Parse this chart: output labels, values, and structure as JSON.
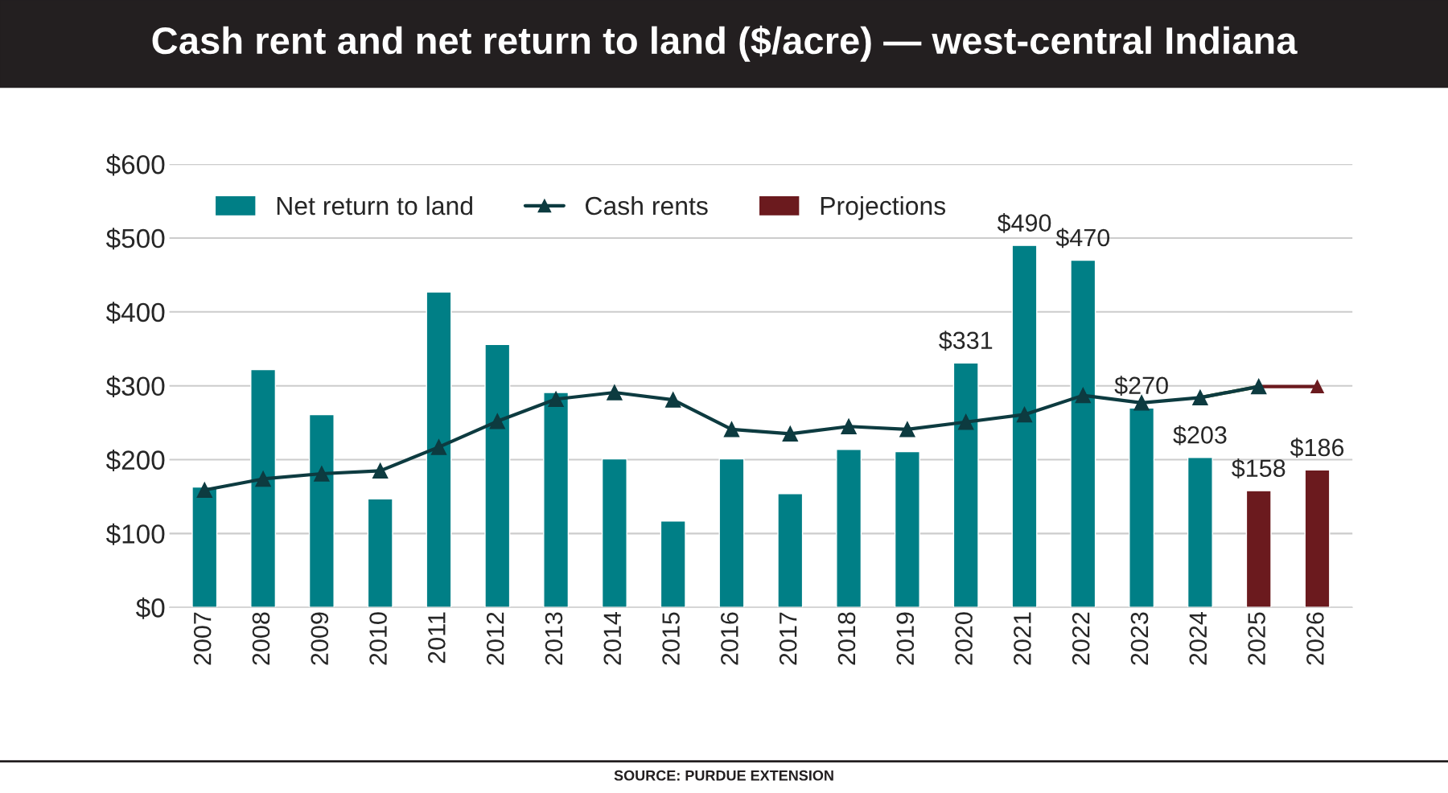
{
  "chart_data": {
    "type": "bar",
    "title": "Cash rent and net return to land ($/acre) — west-central Indiana",
    "categories": [
      "2007",
      "2008",
      "2009",
      "2010",
      "2011",
      "2012",
      "2013",
      "2014",
      "2015",
      "2016",
      "2017",
      "2018",
      "2019",
      "2020",
      "2021",
      "2022",
      "2023",
      "2024",
      "2025",
      "2026"
    ],
    "series": [
      {
        "name": "Net return to land",
        "color": "#007f86",
        "values": [
          163,
          322,
          261,
          147,
          427,
          356,
          291,
          201,
          117,
          201,
          154,
          214,
          211,
          331,
          490,
          470,
          270,
          203,
          null,
          null
        ],
        "value_labels": [
          null,
          null,
          null,
          null,
          null,
          null,
          null,
          null,
          null,
          null,
          null,
          null,
          null,
          "$331",
          "$490",
          "$470",
          "$270",
          "$203",
          null,
          null
        ]
      },
      {
        "type": "line",
        "color": "#6b1a1e",
        "marker": "triangle",
        "values": [
          null,
          null,
          null,
          null,
          null,
          null,
          null,
          null,
          null,
          null,
          null,
          null,
          null,
          null,
          null,
          null,
          null,
          null,
          299,
          299
        ]
      },
      {
        "name": "Cash rents",
        "type": "line",
        "color": "#0d3b40",
        "marker": "triangle",
        "values": [
          159,
          174,
          181,
          185,
          217,
          252,
          282,
          291,
          281,
          241,
          235,
          245,
          241,
          251,
          261,
          287,
          277,
          284,
          299,
          null
        ]
      },
      {
        "type": "line",
        "color": "#4f6b1a",
        "marker": "none",
        "values": [
          null,
          null,
          null,
          null,
          null,
          null,
          null,
          null,
          null,
          null,
          null,
          null,
          null,
          null,
          null,
          null,
          null,
          284,
          299,
          null
        ]
      },
      {
        "name": "Projections",
        "color": "#6b1a1e",
        "values": [
          null,
          null,
          null,
          null,
          null,
          null,
          null,
          null,
          null,
          null,
          null,
          null,
          null,
          null,
          null,
          null,
          null,
          null,
          158,
          186
        ],
        "value_labels": [
          null,
          null,
          null,
          null,
          null,
          null,
          null,
          null,
          null,
          null,
          null,
          null,
          null,
          null,
          null,
          null,
          null,
          null,
          "$158",
          "$186"
        ]
      }
    ],
    "ylim": [
      0,
      600
    ],
    "yticks": [
      {
        "value": 0,
        "label": "$0"
      },
      {
        "value": 100,
        "label": "$100"
      },
      {
        "value": 200,
        "label": "$200"
      },
      {
        "value": 300,
        "label": "$300"
      },
      {
        "value": 400,
        "label": "$400"
      },
      {
        "value": 500,
        "label": "$500"
      },
      {
        "value": 600,
        "label": "$600"
      }
    ],
    "grid": "y",
    "legend": "top left",
    "annotations": [
      "SOURCE: PURDUE EXTENSION"
    ]
  }
}
